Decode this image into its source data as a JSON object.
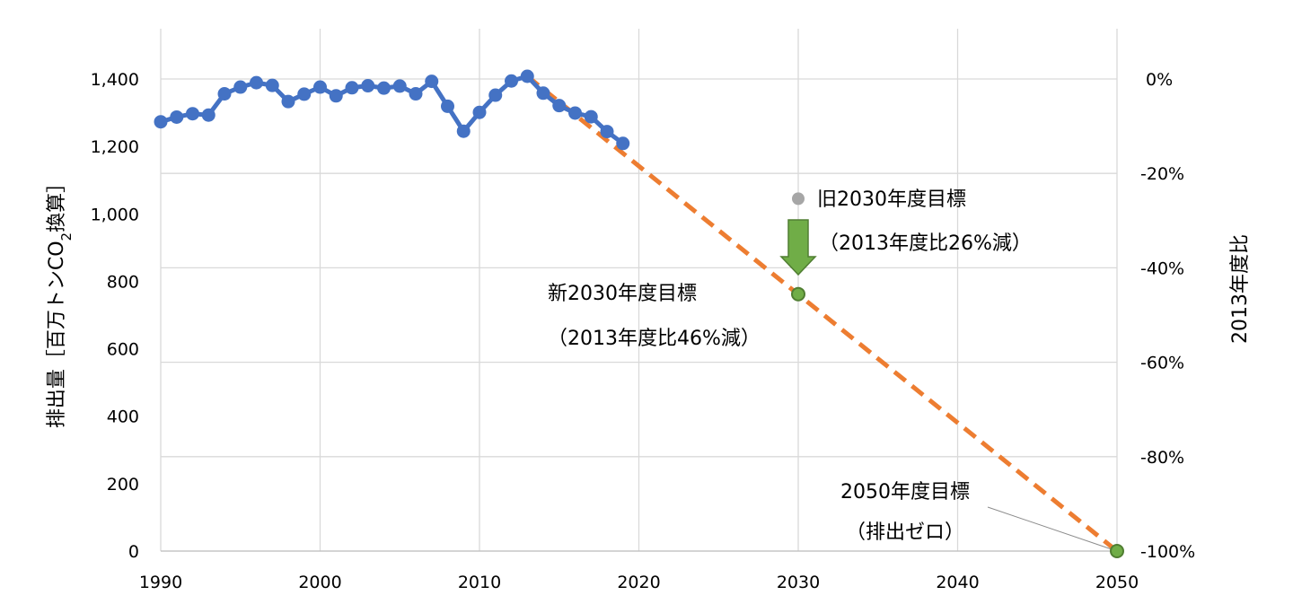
{
  "chart_data": {
    "type": "line",
    "xlim": [
      1990,
      2050
    ],
    "ylim": [
      0,
      1400
    ],
    "y2lim": [
      -100,
      0
    ],
    "x_ticks": [
      "1990",
      "2000",
      "2010",
      "2020",
      "2030",
      "2040",
      "2050"
    ],
    "y_ticks": [
      "0",
      "200",
      "400",
      "600",
      "800",
      "1,000",
      "1,200",
      "1,400"
    ],
    "y2_ticks": [
      "-100%",
      "-80%",
      "-60%",
      "-40%",
      "-20%",
      "0%"
    ],
    "ylabel_parts": [
      "排出量［百万トンCO",
      "2",
      "換算］"
    ],
    "y2label": "2013年度比",
    "grid": true,
    "colors": {
      "actual": "#4472c4",
      "target": "#ed7d31",
      "old_target": "#a6a6a6",
      "new_target": "#70ad47",
      "arrow": "#70ad47",
      "arrow_border": "#507e32"
    },
    "series": [
      {
        "x": [
          1990,
          1991,
          1992,
          1993,
          1994,
          1995,
          1996,
          1997,
          1998,
          1999,
          2000,
          2001,
          2002,
          2003,
          2004,
          2005,
          2006,
          2007,
          2008,
          2009,
          2010,
          2011,
          2012,
          2013,
          2014,
          2015,
          2016,
          2017,
          2018,
          2019
        ],
        "values": [
          1273,
          1287,
          1297,
          1293,
          1356,
          1376,
          1389,
          1381,
          1333,
          1355,
          1376,
          1350,
          1374,
          1380,
          1373,
          1379,
          1356,
          1393,
          1319,
          1245,
          1301,
          1352,
          1394,
          1408,
          1358,
          1321,
          1299,
          1288,
          1244,
          1209
        ]
      },
      {
        "x": [
          2013,
          2050
        ],
        "values": [
          1408,
          0
        ]
      }
    ],
    "points": {
      "old_2030": {
        "x": 2030,
        "y": 1045
      },
      "new_2030": {
        "x": 2030,
        "y": 762
      },
      "target_2050": {
        "x": 2050,
        "y": 0
      }
    },
    "annotations": {
      "old_line1": "旧2030年度目標",
      "old_line2": "（2013年度比26%減）",
      "new_line1": "新2030年度目標",
      "new_line2": "（2013年度比46%減）",
      "goal_line1": "2050年度目標",
      "goal_line2": "（排出ゼロ）"
    }
  }
}
